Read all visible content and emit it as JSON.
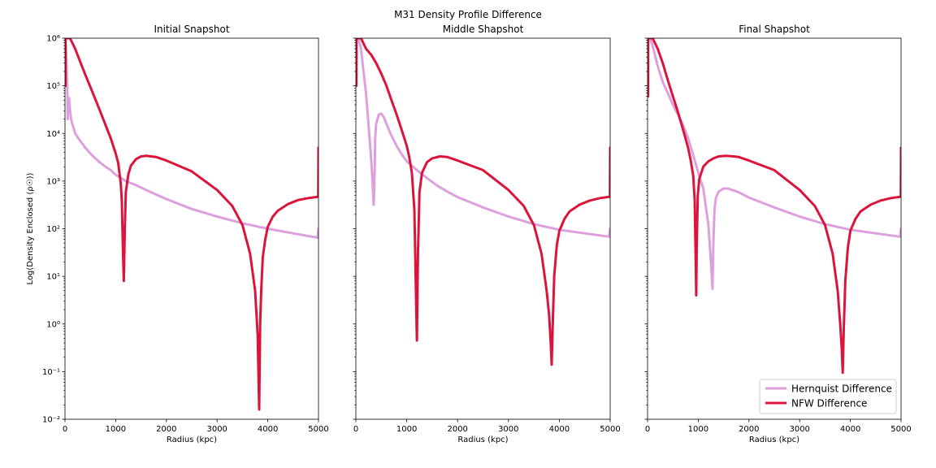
{
  "suptitle": "M31 Density Profile Difference",
  "colors": {
    "hernquist": "#dda0dd",
    "nfw": "#dc143c"
  },
  "chart_data": [
    {
      "type": "line",
      "title": "Initial  Snapshot",
      "xlabel": "Radius (kpc)",
      "ylabel": "Log(Density Enclosed (ρ☉))",
      "xlim": [
        0,
        5000
      ],
      "ylim": [
        0.01,
        1000000
      ],
      "yscale": "log",
      "xticks": [
        "0",
        "1000",
        "2000",
        "3000",
        "4000",
        "5000"
      ],
      "yticks": [
        "10⁻²",
        "10⁻¹",
        "10⁰",
        "10¹",
        "10²",
        "10³",
        "10⁴",
        "10⁵",
        "10⁶"
      ],
      "legend": false,
      "series": [
        {
          "name": "Hernquist Difference",
          "x": [
            0,
            15,
            30,
            45,
            55,
            60,
            70,
            80,
            100,
            120,
            150,
            180,
            200,
            230,
            260,
            300,
            350,
            400,
            500,
            600,
            700,
            800,
            900,
            1000,
            1200,
            1400,
            1600,
            1800,
            2000,
            2500,
            3000,
            3500,
            4000,
            4500,
            4980,
            5000
          ],
          "y": [
            1000000,
            700000,
            300000,
            100000,
            20000,
            50000,
            40000,
            55000,
            30000,
            20000,
            15000,
            12000,
            10000,
            9000,
            8000,
            7000,
            6000,
            5000,
            3800,
            3000,
            2400,
            2000,
            1700,
            1350,
            1000,
            820,
            650,
            520,
            420,
            260,
            180,
            130,
            100,
            80,
            65,
            100
          ]
        },
        {
          "name": "NFW Difference",
          "x": [
            0,
            5,
            10,
            12,
            50,
            100,
            200,
            300,
            400,
            500,
            600,
            700,
            800,
            900,
            1000,
            1050,
            1100,
            1120,
            1140,
            1160,
            1180,
            1200,
            1250,
            1300,
            1400,
            1500,
            1600,
            1800,
            2000,
            2500,
            3000,
            3300,
            3500,
            3650,
            3750,
            3800,
            3830,
            3850,
            3870,
            3900,
            3950,
            4000,
            4100,
            4200,
            4400,
            4600,
            4800,
            4995,
            5000
          ],
          "y": [
            100000,
            100000,
            100000,
            1000000,
            1000000,
            1000000,
            600000,
            320000,
            170000,
            95000,
            52000,
            28000,
            15000,
            8000,
            3800,
            2400,
            900,
            400,
            50,
            8,
            100,
            600,
            1400,
            2100,
            2900,
            3300,
            3400,
            3200,
            2700,
            1600,
            650,
            300,
            120,
            30,
            5,
            0.6,
            0.016,
            1,
            5,
            25,
            60,
            110,
            180,
            240,
            330,
            400,
            440,
            470,
            5000
          ]
        }
      ]
    },
    {
      "type": "line",
      "title": "Middle Shapshot",
      "xlabel": "Radius (kpc)",
      "xlim": [
        0,
        5000
      ],
      "ylim": [
        0.01,
        1000000
      ],
      "yscale": "log",
      "xticks": [
        "0",
        "1000",
        "2000",
        "3000",
        "4000",
        "5000"
      ],
      "legend": false,
      "series": [
        {
          "name": "Hernquist Difference",
          "x": [
            0,
            5,
            8,
            50,
            100,
            150,
            200,
            250,
            300,
            330,
            350,
            360,
            370,
            380,
            400,
            450,
            500,
            550,
            600,
            700,
            800,
            900,
            1000,
            1200,
            1400,
            1600,
            1800,
            2000,
            2500,
            3000,
            3500,
            4000,
            4500,
            4980,
            5000
          ],
          "y": [
            100000,
            100000,
            1000000,
            1000000,
            600000,
            200000,
            70000,
            15000,
            3000,
            800,
            320,
            600,
            2000,
            8000,
            16000,
            25000,
            26000,
            22000,
            16000,
            9000,
            5500,
            3700,
            2600,
            1700,
            1150,
            800,
            600,
            460,
            280,
            180,
            125,
            95,
            80,
            68,
            100
          ]
        },
        {
          "name": "NFW Difference",
          "x": [
            0,
            5,
            10,
            12,
            100,
            200,
            300,
            400,
            500,
            600,
            700,
            800,
            900,
            1000,
            1050,
            1100,
            1150,
            1180,
            1200,
            1220,
            1250,
            1300,
            1400,
            1500,
            1650,
            1800,
            2000,
            2500,
            3000,
            3300,
            3500,
            3650,
            3750,
            3800,
            3830,
            3850,
            3870,
            3900,
            3950,
            4000,
            4100,
            4200,
            4400,
            4600,
            4800,
            4995,
            5000
          ],
          "y": [
            100000,
            100000,
            100000,
            1000000,
            1000000,
            600000,
            450000,
            300000,
            180000,
            100000,
            50000,
            25000,
            12000,
            5500,
            3200,
            1500,
            250,
            5,
            0.45,
            30,
            600,
            1500,
            2500,
            3000,
            3300,
            3200,
            2700,
            1700,
            650,
            300,
            120,
            30,
            5,
            1.5,
            0.4,
            0.14,
            1,
            10,
            45,
            90,
            160,
            230,
            320,
            390,
            440,
            470,
            5000
          ]
        }
      ]
    },
    {
      "type": "line",
      "title": "Final Shapshot",
      "xlabel": "Radius (kpc)",
      "xlim": [
        0,
        5000
      ],
      "ylim": [
        0.01,
        1000000
      ],
      "yscale": "log",
      "xticks": [
        "0",
        "1000",
        "2000",
        "3000",
        "4000",
        "5000"
      ],
      "legend": true,
      "legend_loc": "lower right",
      "series": [
        {
          "name": "Hernquist Difference",
          "x": [
            0,
            5,
            8,
            50,
            100,
            200,
            300,
            400,
            500,
            600,
            700,
            800,
            900,
            1000,
            1100,
            1200,
            1250,
            1280,
            1300,
            1320,
            1350,
            1400,
            1500,
            1600,
            1800,
            2000,
            2500,
            3000,
            3500,
            4000,
            4500,
            4980,
            5000
          ],
          "y": [
            60000,
            60000,
            1000000,
            1000000,
            700000,
            260000,
            120000,
            70000,
            40000,
            25000,
            15000,
            8000,
            3500,
            1500,
            700,
            120,
            20,
            5.5,
            60,
            250,
            450,
            600,
            700,
            690,
            580,
            450,
            280,
            180,
            125,
            95,
            80,
            68,
            100
          ]
        },
        {
          "name": "NFW Difference",
          "x": [
            0,
            5,
            10,
            12,
            100,
            200,
            300,
            400,
            500,
            600,
            700,
            800,
            850,
            900,
            930,
            950,
            960,
            970,
            990,
            1020,
            1100,
            1200,
            1300,
            1400,
            1550,
            1700,
            1800,
            2000,
            2500,
            3000,
            3300,
            3500,
            3650,
            3750,
            3800,
            3830,
            3850,
            3870,
            3900,
            3950,
            4000,
            4100,
            4200,
            4400,
            4600,
            4800,
            4995,
            5000
          ],
          "y": [
            60000,
            60000,
            60000,
            1000000,
            1000000,
            600000,
            300000,
            130000,
            60000,
            28000,
            12000,
            5000,
            2800,
            1300,
            400,
            20,
            4,
            40,
            500,
            1100,
            2000,
            2600,
            3000,
            3300,
            3400,
            3300,
            3200,
            2700,
            1700,
            650,
            300,
            120,
            30,
            5,
            1,
            0.3,
            0.095,
            0.8,
            8,
            40,
            90,
            160,
            230,
            320,
            390,
            440,
            470,
            5000
          ]
        }
      ]
    }
  ]
}
